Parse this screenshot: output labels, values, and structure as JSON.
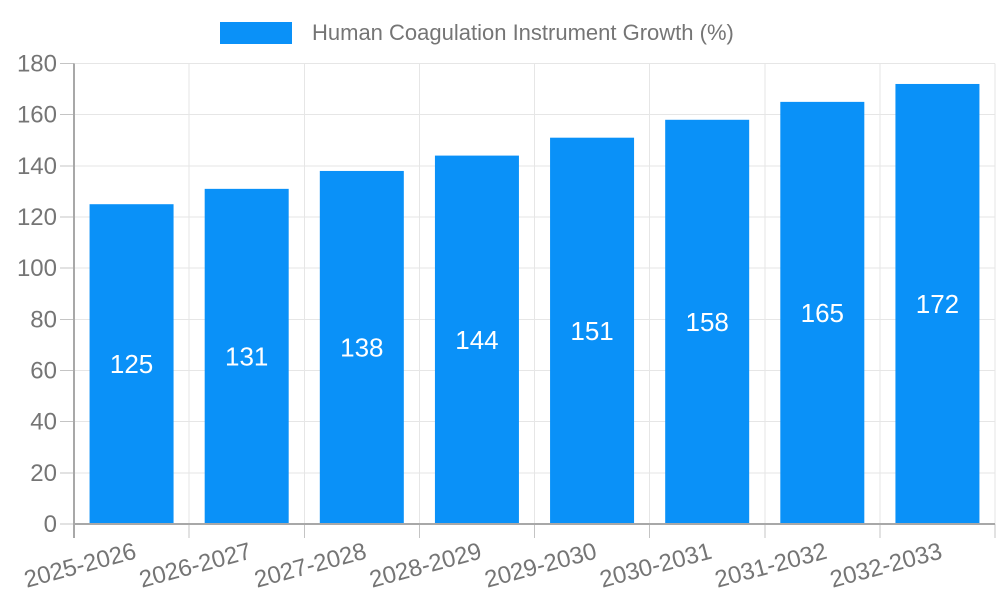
{
  "chart_data": {
    "type": "bar",
    "title": "Human Coagulation Instrument Growth (%)",
    "xlabel": "",
    "ylabel": "",
    "categories": [
      "2025-2026",
      "2026-2027",
      "2027-2028",
      "2028-2029",
      "2029-2030",
      "2030-2031",
      "2031-2032",
      "2032-2033"
    ],
    "values": [
      125,
      131,
      138,
      144,
      151,
      158,
      165,
      172
    ],
    "bar_value_labels": [
      "125",
      "131",
      "138",
      "144",
      "151",
      "158",
      "165",
      "172"
    ],
    "ylim": [
      0,
      180
    ],
    "yticks": [
      0,
      20,
      40,
      60,
      80,
      100,
      120,
      140,
      160,
      180
    ],
    "grid": true,
    "legend_position": "top-center",
    "x_label_rotation_deg": -15
  },
  "theme": {
    "accent_color": "#0a91f8",
    "bar_label_color": "#ffffff",
    "axis_label_color": "#757575",
    "legend_label_color": "#757575",
    "grid_color": "#e6e6e6",
    "axis_line_color": "#a8a8a8",
    "tick_color": "#c4c4c4",
    "background_color": "#ffffff"
  }
}
